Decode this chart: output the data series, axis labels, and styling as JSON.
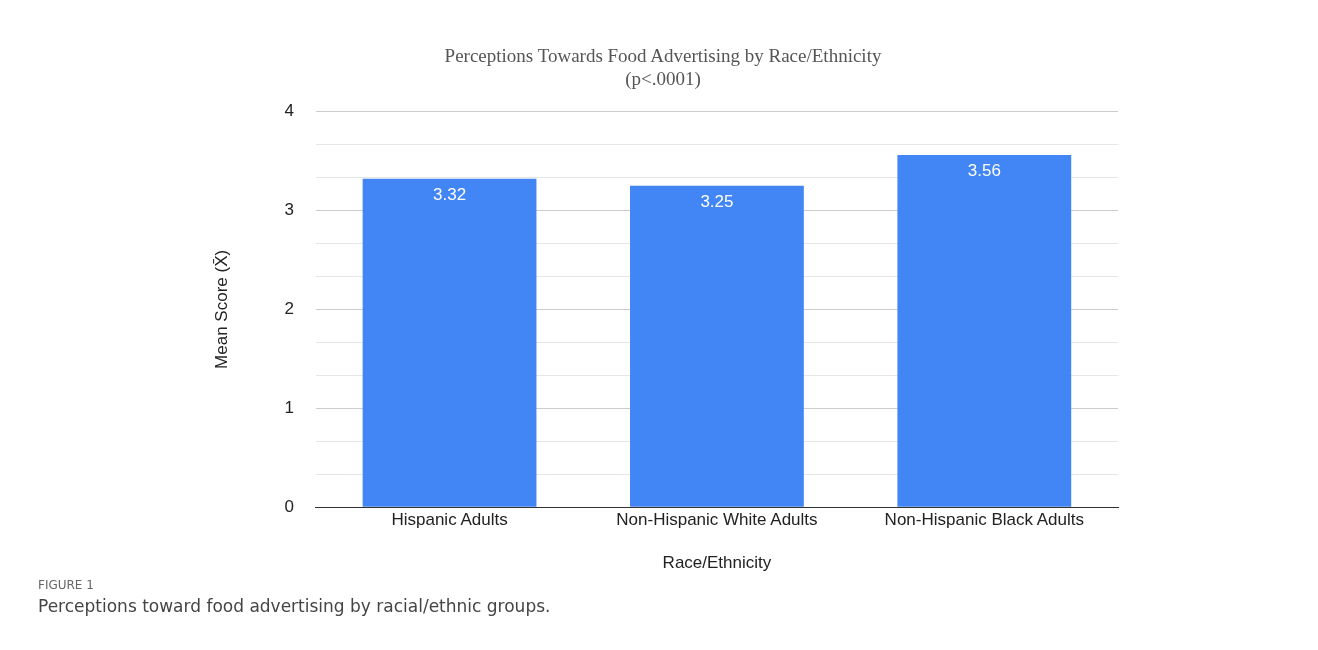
{
  "chart_data": {
    "type": "bar",
    "title": "Perceptions Towards Food Advertising by Race/Ethnicity",
    "subtitle": "(p<.0001)",
    "xlabel": "Race/Ethnicity",
    "ylabel": "Mean Score (X̄)",
    "categories": [
      "Hispanic Adults",
      "Non-Hispanic White Adults",
      "Non-Hispanic Black Adults"
    ],
    "values": [
      3.32,
      3.25,
      3.56
    ],
    "color": "#4285f4",
    "data_labels": true,
    "ylim": [
      0,
      4
    ],
    "yticks": [
      0,
      {
        "value": 0.333,
        "label": null
      },
      {
        "value": 0.667,
        "label": null
      },
      1,
      {
        "value": 1.333,
        "label": null
      },
      {
        "value": 1.667,
        "label": null
      },
      2,
      {
        "value": 2.333,
        "label": null
      },
      {
        "value": 2.667,
        "label": null
      },
      3,
      {
        "value": 3.333,
        "label": null
      },
      {
        "value": 3.667,
        "label": null
      },
      4
    ],
    "grid": "y",
    "legend": false,
    "annotations": [
      "FIGURE 1",
      "Perceptions toward food advertising by racial/ethnic groups."
    ]
  }
}
